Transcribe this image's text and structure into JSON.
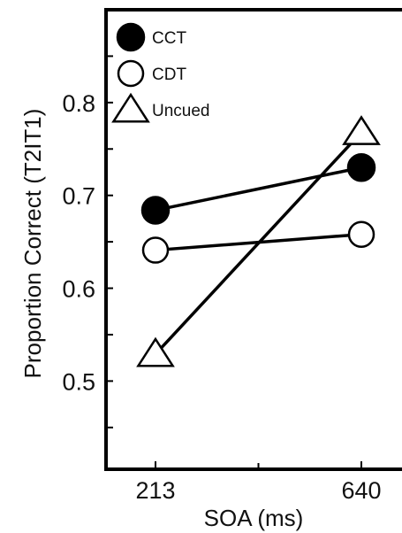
{
  "chart_data": {
    "type": "line",
    "title": "",
    "xlabel": "SOA (ms)",
    "ylabel": "Proportion Correct (T2IT1)",
    "categories": [
      "213",
      "640"
    ],
    "ylim": [
      0.405,
      0.9
    ],
    "yticks": [
      0.5,
      0.6,
      0.7,
      0.8
    ],
    "ytick_labels": [
      "0.5",
      "0.6",
      "0.7",
      "0.8"
    ],
    "grid": false,
    "legend_position": "top-left",
    "series": [
      {
        "name": "CCT",
        "marker": "filled-circle",
        "values": [
          0.684,
          0.73
        ]
      },
      {
        "name": "CDT",
        "marker": "open-circle",
        "values": [
          0.641,
          0.658
        ]
      },
      {
        "name": "Uncued",
        "marker": "open-triangle",
        "values": [
          0.529,
          0.768
        ]
      }
    ]
  },
  "colors": {
    "ink": "#000000",
    "background": "#ffffff"
  }
}
